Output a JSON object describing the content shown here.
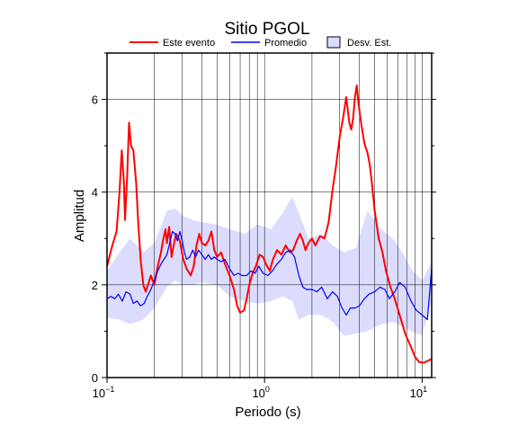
{
  "chart_data": {
    "type": "line",
    "title": "Sitio PGOL",
    "xlabel": "Periodo (s)",
    "ylabel": "Amplitud",
    "x_scale": "log",
    "xlim": [
      0.1,
      11.5
    ],
    "ylim": [
      0,
      7
    ],
    "grid": "vertical log gridlines, horizontal lines at even y",
    "x_ticks": [
      {
        "value": 0.1,
        "base": "10",
        "exp": "−1"
      },
      {
        "value": 1,
        "base": "10",
        "exp": "0"
      },
      {
        "value": 10,
        "base": "10",
        "exp": "1"
      }
    ],
    "y_ticks": [
      0,
      2,
      4,
      6
    ],
    "legend": {
      "placement": "top",
      "entries": [
        {
          "label": "Este evento",
          "type": "line",
          "color": "#ff0000"
        },
        {
          "label": "Promedio",
          "type": "line",
          "color": "#0000ff"
        },
        {
          "label": "Desv. Est.",
          "type": "band",
          "color": "#dcdcff"
        }
      ]
    },
    "series": [
      {
        "name": "Este evento",
        "color": "#ff0000",
        "points": [
          [
            0.1,
            2.4
          ],
          [
            0.108,
            2.85
          ],
          [
            0.115,
            3.15
          ],
          [
            0.12,
            4.0
          ],
          [
            0.124,
            4.9
          ],
          [
            0.128,
            4.2
          ],
          [
            0.13,
            3.4
          ],
          [
            0.134,
            4.3
          ],
          [
            0.138,
            5.5
          ],
          [
            0.142,
            5.0
          ],
          [
            0.147,
            4.9
          ],
          [
            0.153,
            4.2
          ],
          [
            0.158,
            3.3
          ],
          [
            0.164,
            2.5
          ],
          [
            0.17,
            2.0
          ],
          [
            0.176,
            1.85
          ],
          [
            0.184,
            2.05
          ],
          [
            0.19,
            2.2
          ],
          [
            0.2,
            2.0
          ],
          [
            0.21,
            2.4
          ],
          [
            0.22,
            2.7
          ],
          [
            0.228,
            3.0
          ],
          [
            0.235,
            3.2
          ],
          [
            0.24,
            2.9
          ],
          [
            0.248,
            3.25
          ],
          [
            0.257,
            2.6
          ],
          [
            0.265,
            2.85
          ],
          [
            0.275,
            3.1
          ],
          [
            0.29,
            2.95
          ],
          [
            0.305,
            2.55
          ],
          [
            0.32,
            2.35
          ],
          [
            0.34,
            2.2
          ],
          [
            0.355,
            2.4
          ],
          [
            0.37,
            2.85
          ],
          [
            0.385,
            3.1
          ],
          [
            0.4,
            2.9
          ],
          [
            0.42,
            2.85
          ],
          [
            0.44,
            2.95
          ],
          [
            0.46,
            3.15
          ],
          [
            0.48,
            2.75
          ],
          [
            0.5,
            2.6
          ],
          [
            0.53,
            2.7
          ],
          [
            0.56,
            2.45
          ],
          [
            0.6,
            2.2
          ],
          [
            0.64,
            1.9
          ],
          [
            0.67,
            1.55
          ],
          [
            0.7,
            1.4
          ],
          [
            0.74,
            1.45
          ],
          [
            0.77,
            1.7
          ],
          [
            0.8,
            2.0
          ],
          [
            0.84,
            2.25
          ],
          [
            0.88,
            2.4
          ],
          [
            0.93,
            2.65
          ],
          [
            0.98,
            2.6
          ],
          [
            1.02,
            2.45
          ],
          [
            1.08,
            2.3
          ],
          [
            1.13,
            2.55
          ],
          [
            1.2,
            2.75
          ],
          [
            1.28,
            2.65
          ],
          [
            1.36,
            2.85
          ],
          [
            1.45,
            2.7
          ],
          [
            1.52,
            2.75
          ],
          [
            1.6,
            2.95
          ],
          [
            1.68,
            3.1
          ],
          [
            1.75,
            2.95
          ],
          [
            1.82,
            2.75
          ],
          [
            1.9,
            2.9
          ],
          [
            2.0,
            3.0
          ],
          [
            2.1,
            2.85
          ],
          [
            2.25,
            3.05
          ],
          [
            2.4,
            3.0
          ],
          [
            2.55,
            3.35
          ],
          [
            2.7,
            4.05
          ],
          [
            2.85,
            4.6
          ],
          [
            3.0,
            5.2
          ],
          [
            3.15,
            5.6
          ],
          [
            3.3,
            6.05
          ],
          [
            3.45,
            5.5
          ],
          [
            3.55,
            5.35
          ],
          [
            3.65,
            5.6
          ],
          [
            3.75,
            6.05
          ],
          [
            3.85,
            6.3
          ],
          [
            3.95,
            5.9
          ],
          [
            4.1,
            5.5
          ],
          [
            4.3,
            5.05
          ],
          [
            4.5,
            4.85
          ],
          [
            4.65,
            4.6
          ],
          [
            4.8,
            4.2
          ],
          [
            5.0,
            3.6
          ],
          [
            5.3,
            3.0
          ],
          [
            5.6,
            2.7
          ],
          [
            5.9,
            2.3
          ],
          [
            6.3,
            1.95
          ],
          [
            6.7,
            1.7
          ],
          [
            7.2,
            1.35
          ],
          [
            7.8,
            0.95
          ],
          [
            8.4,
            0.7
          ],
          [
            9.0,
            0.45
          ],
          [
            9.6,
            0.33
          ],
          [
            10.3,
            0.32
          ],
          [
            11.0,
            0.37
          ],
          [
            11.5,
            0.4
          ]
        ]
      },
      {
        "name": "Promedio",
        "color": "#0000ff",
        "points": [
          [
            0.1,
            1.7
          ],
          [
            0.106,
            1.75
          ],
          [
            0.112,
            1.7
          ],
          [
            0.118,
            1.8
          ],
          [
            0.125,
            1.65
          ],
          [
            0.132,
            1.85
          ],
          [
            0.14,
            1.8
          ],
          [
            0.147,
            1.6
          ],
          [
            0.155,
            1.65
          ],
          [
            0.163,
            1.55
          ],
          [
            0.172,
            1.6
          ],
          [
            0.18,
            1.75
          ],
          [
            0.19,
            1.9
          ],
          [
            0.2,
            2.1
          ],
          [
            0.21,
            2.3
          ],
          [
            0.22,
            2.45
          ],
          [
            0.23,
            2.55
          ],
          [
            0.24,
            2.65
          ],
          [
            0.25,
            2.9
          ],
          [
            0.26,
            3.15
          ],
          [
            0.27,
            3.1
          ],
          [
            0.28,
            2.95
          ],
          [
            0.29,
            3.15
          ],
          [
            0.3,
            2.95
          ],
          [
            0.31,
            2.7
          ],
          [
            0.32,
            2.55
          ],
          [
            0.335,
            2.6
          ],
          [
            0.35,
            2.75
          ],
          [
            0.365,
            2.6
          ],
          [
            0.38,
            2.75
          ],
          [
            0.4,
            2.65
          ],
          [
            0.42,
            2.55
          ],
          [
            0.44,
            2.65
          ],
          [
            0.46,
            2.55
          ],
          [
            0.48,
            2.6
          ],
          [
            0.5,
            2.55
          ],
          [
            0.53,
            2.5
          ],
          [
            0.56,
            2.55
          ],
          [
            0.6,
            2.35
          ],
          [
            0.64,
            2.2
          ],
          [
            0.68,
            2.25
          ],
          [
            0.72,
            2.2
          ],
          [
            0.77,
            2.2
          ],
          [
            0.82,
            2.3
          ],
          [
            0.87,
            2.25
          ],
          [
            0.92,
            2.4
          ],
          [
            0.98,
            2.25
          ],
          [
            1.05,
            2.2
          ],
          [
            1.12,
            2.3
          ],
          [
            1.2,
            2.45
          ],
          [
            1.28,
            2.55
          ],
          [
            1.36,
            2.7
          ],
          [
            1.45,
            2.75
          ],
          [
            1.55,
            2.6
          ],
          [
            1.65,
            2.2
          ],
          [
            1.75,
            1.95
          ],
          [
            1.85,
            1.9
          ],
          [
            2.0,
            1.9
          ],
          [
            2.15,
            1.85
          ],
          [
            2.3,
            1.95
          ],
          [
            2.5,
            1.7
          ],
          [
            2.7,
            1.85
          ],
          [
            2.9,
            1.75
          ],
          [
            3.1,
            1.5
          ],
          [
            3.3,
            1.35
          ],
          [
            3.5,
            1.5
          ],
          [
            3.75,
            1.5
          ],
          [
            4.0,
            1.55
          ],
          [
            4.3,
            1.7
          ],
          [
            4.6,
            1.8
          ],
          [
            5.0,
            1.85
          ],
          [
            5.4,
            1.95
          ],
          [
            5.8,
            1.9
          ],
          [
            6.2,
            1.7
          ],
          [
            6.7,
            1.85
          ],
          [
            7.2,
            2.05
          ],
          [
            7.8,
            1.95
          ],
          [
            8.5,
            1.65
          ],
          [
            9.2,
            1.45
          ],
          [
            10.0,
            1.35
          ],
          [
            10.8,
            1.25
          ],
          [
            11.5,
            2.35
          ]
        ]
      }
    ],
    "band": {
      "name": "Desv. Est.",
      "color": "#dcdcff",
      "upper": [
        [
          0.1,
          2.3
        ],
        [
          0.12,
          2.7
        ],
        [
          0.14,
          3.0
        ],
        [
          0.17,
          2.7
        ],
        [
          0.2,
          2.9
        ],
        [
          0.24,
          3.6
        ],
        [
          0.27,
          3.65
        ],
        [
          0.3,
          3.5
        ],
        [
          0.35,
          3.4
        ],
        [
          0.4,
          3.35
        ],
        [
          0.5,
          3.3
        ],
        [
          0.6,
          3.2
        ],
        [
          0.75,
          3.1
        ],
        [
          0.9,
          3.3
        ],
        [
          1.1,
          3.2
        ],
        [
          1.3,
          3.55
        ],
        [
          1.5,
          3.9
        ],
        [
          1.65,
          3.55
        ],
        [
          1.9,
          3.0
        ],
        [
          2.3,
          3.1
        ],
        [
          2.7,
          2.85
        ],
        [
          3.2,
          2.7
        ],
        [
          3.8,
          2.8
        ],
        [
          4.5,
          3.6
        ],
        [
          5.5,
          3.2
        ],
        [
          6.5,
          3.0
        ],
        [
          7.5,
          2.7
        ],
        [
          8.5,
          2.35
        ],
        [
          10.0,
          2.1
        ],
        [
          11.5,
          2.5
        ]
      ],
      "lower": [
        [
          0.1,
          1.3
        ],
        [
          0.12,
          1.25
        ],
        [
          0.14,
          1.15
        ],
        [
          0.17,
          1.25
        ],
        [
          0.2,
          1.5
        ],
        [
          0.24,
          1.95
        ],
        [
          0.27,
          2.1
        ],
        [
          0.3,
          2.0
        ],
        [
          0.35,
          2.0
        ],
        [
          0.4,
          2.05
        ],
        [
          0.5,
          2.0
        ],
        [
          0.6,
          1.75
        ],
        [
          0.75,
          1.65
        ],
        [
          0.9,
          1.6
        ],
        [
          1.1,
          1.65
        ],
        [
          1.3,
          1.75
        ],
        [
          1.5,
          1.65
        ],
        [
          1.65,
          1.25
        ],
        [
          1.9,
          1.35
        ],
        [
          2.3,
          1.35
        ],
        [
          2.7,
          1.2
        ],
        [
          3.2,
          0.9
        ],
        [
          3.8,
          0.95
        ],
        [
          4.5,
          1.0
        ],
        [
          5.5,
          1.15
        ],
        [
          6.5,
          1.2
        ],
        [
          7.5,
          1.1
        ],
        [
          8.5,
          1.0
        ],
        [
          10.0,
          0.9
        ],
        [
          11.5,
          1.7
        ]
      ]
    }
  }
}
